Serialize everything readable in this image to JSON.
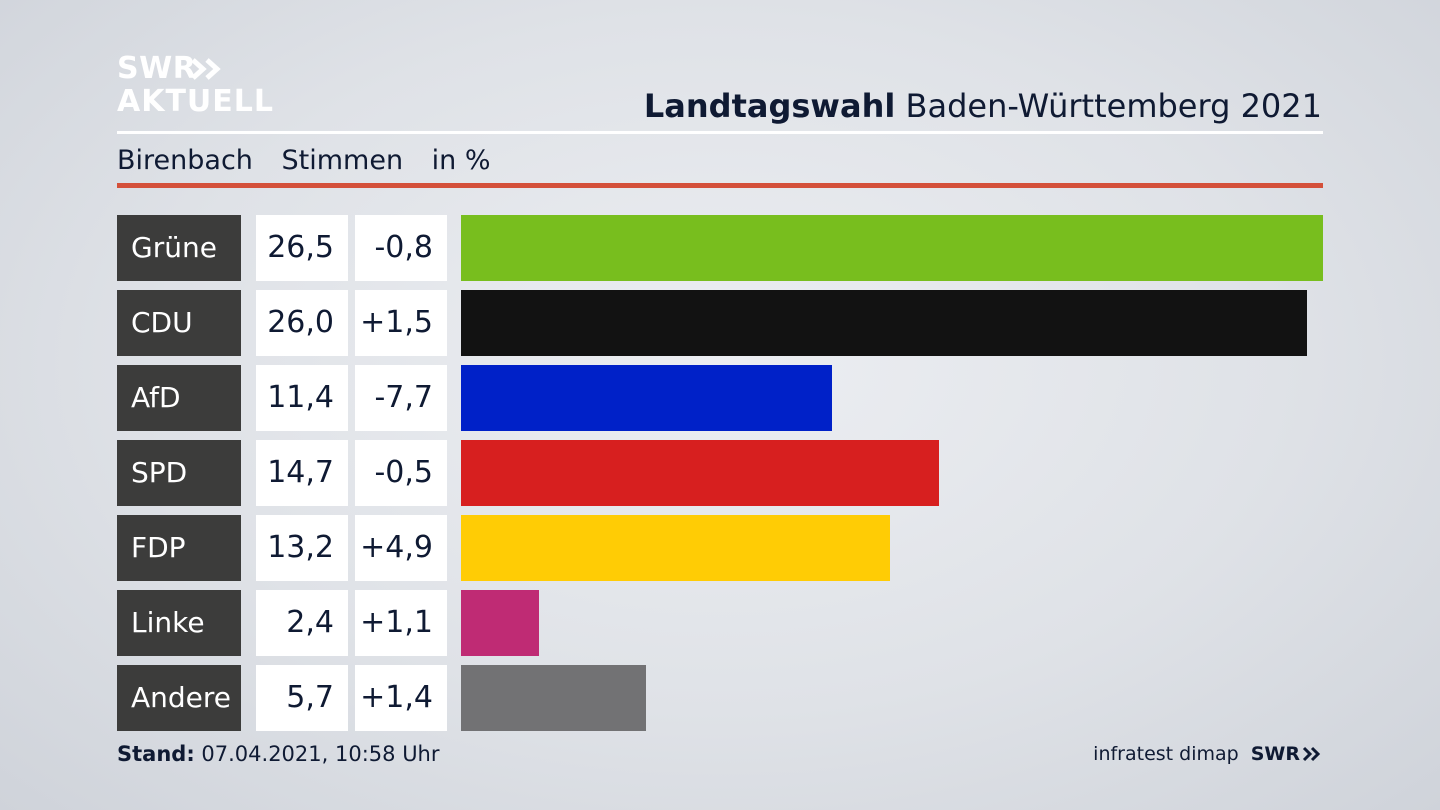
{
  "logo": {
    "line1": "SWR",
    "line2": "AKTUELL"
  },
  "header": {
    "title_bold": "Landtagswahl",
    "title_rest": "Baden-Württemberg 2021"
  },
  "subheader": {
    "place": "Birenbach",
    "metric": "Stimmen",
    "unit": "in %"
  },
  "colors": {
    "accent_rule": "#d4503a",
    "label_bg": "#3c3c3b"
  },
  "chart_data": {
    "type": "bar",
    "orientation": "horizontal",
    "categories": [
      "Grüne",
      "CDU",
      "AfD",
      "SPD",
      "FDP",
      "Linke",
      "Andere"
    ],
    "values": [
      26.5,
      26.0,
      11.4,
      14.7,
      13.2,
      2.4,
      5.7
    ],
    "value_labels": [
      "26,5",
      "26,0",
      "11,4",
      "14,7",
      "13,2",
      "2,4",
      "5,7"
    ],
    "changes": [
      -0.8,
      1.5,
      -7.7,
      -0.5,
      4.9,
      1.1,
      1.4
    ],
    "change_labels": [
      "-0,8",
      "+1,5",
      "-7,7",
      "-0,5",
      "+4,9",
      "+1,1",
      "+1,4"
    ],
    "colors": [
      "#78be1e",
      "#121212",
      "#0021c8",
      "#d71f1f",
      "#ffcc05",
      "#bf2b74",
      "#727274"
    ],
    "xlim": [
      0,
      26.5
    ],
    "grid": false,
    "legend": "none"
  },
  "footer": {
    "stand_label": "Stand:",
    "stand_value": "07.04.2021, 10:58 Uhr",
    "source": "infratest dimap",
    "brand": "SWR"
  }
}
